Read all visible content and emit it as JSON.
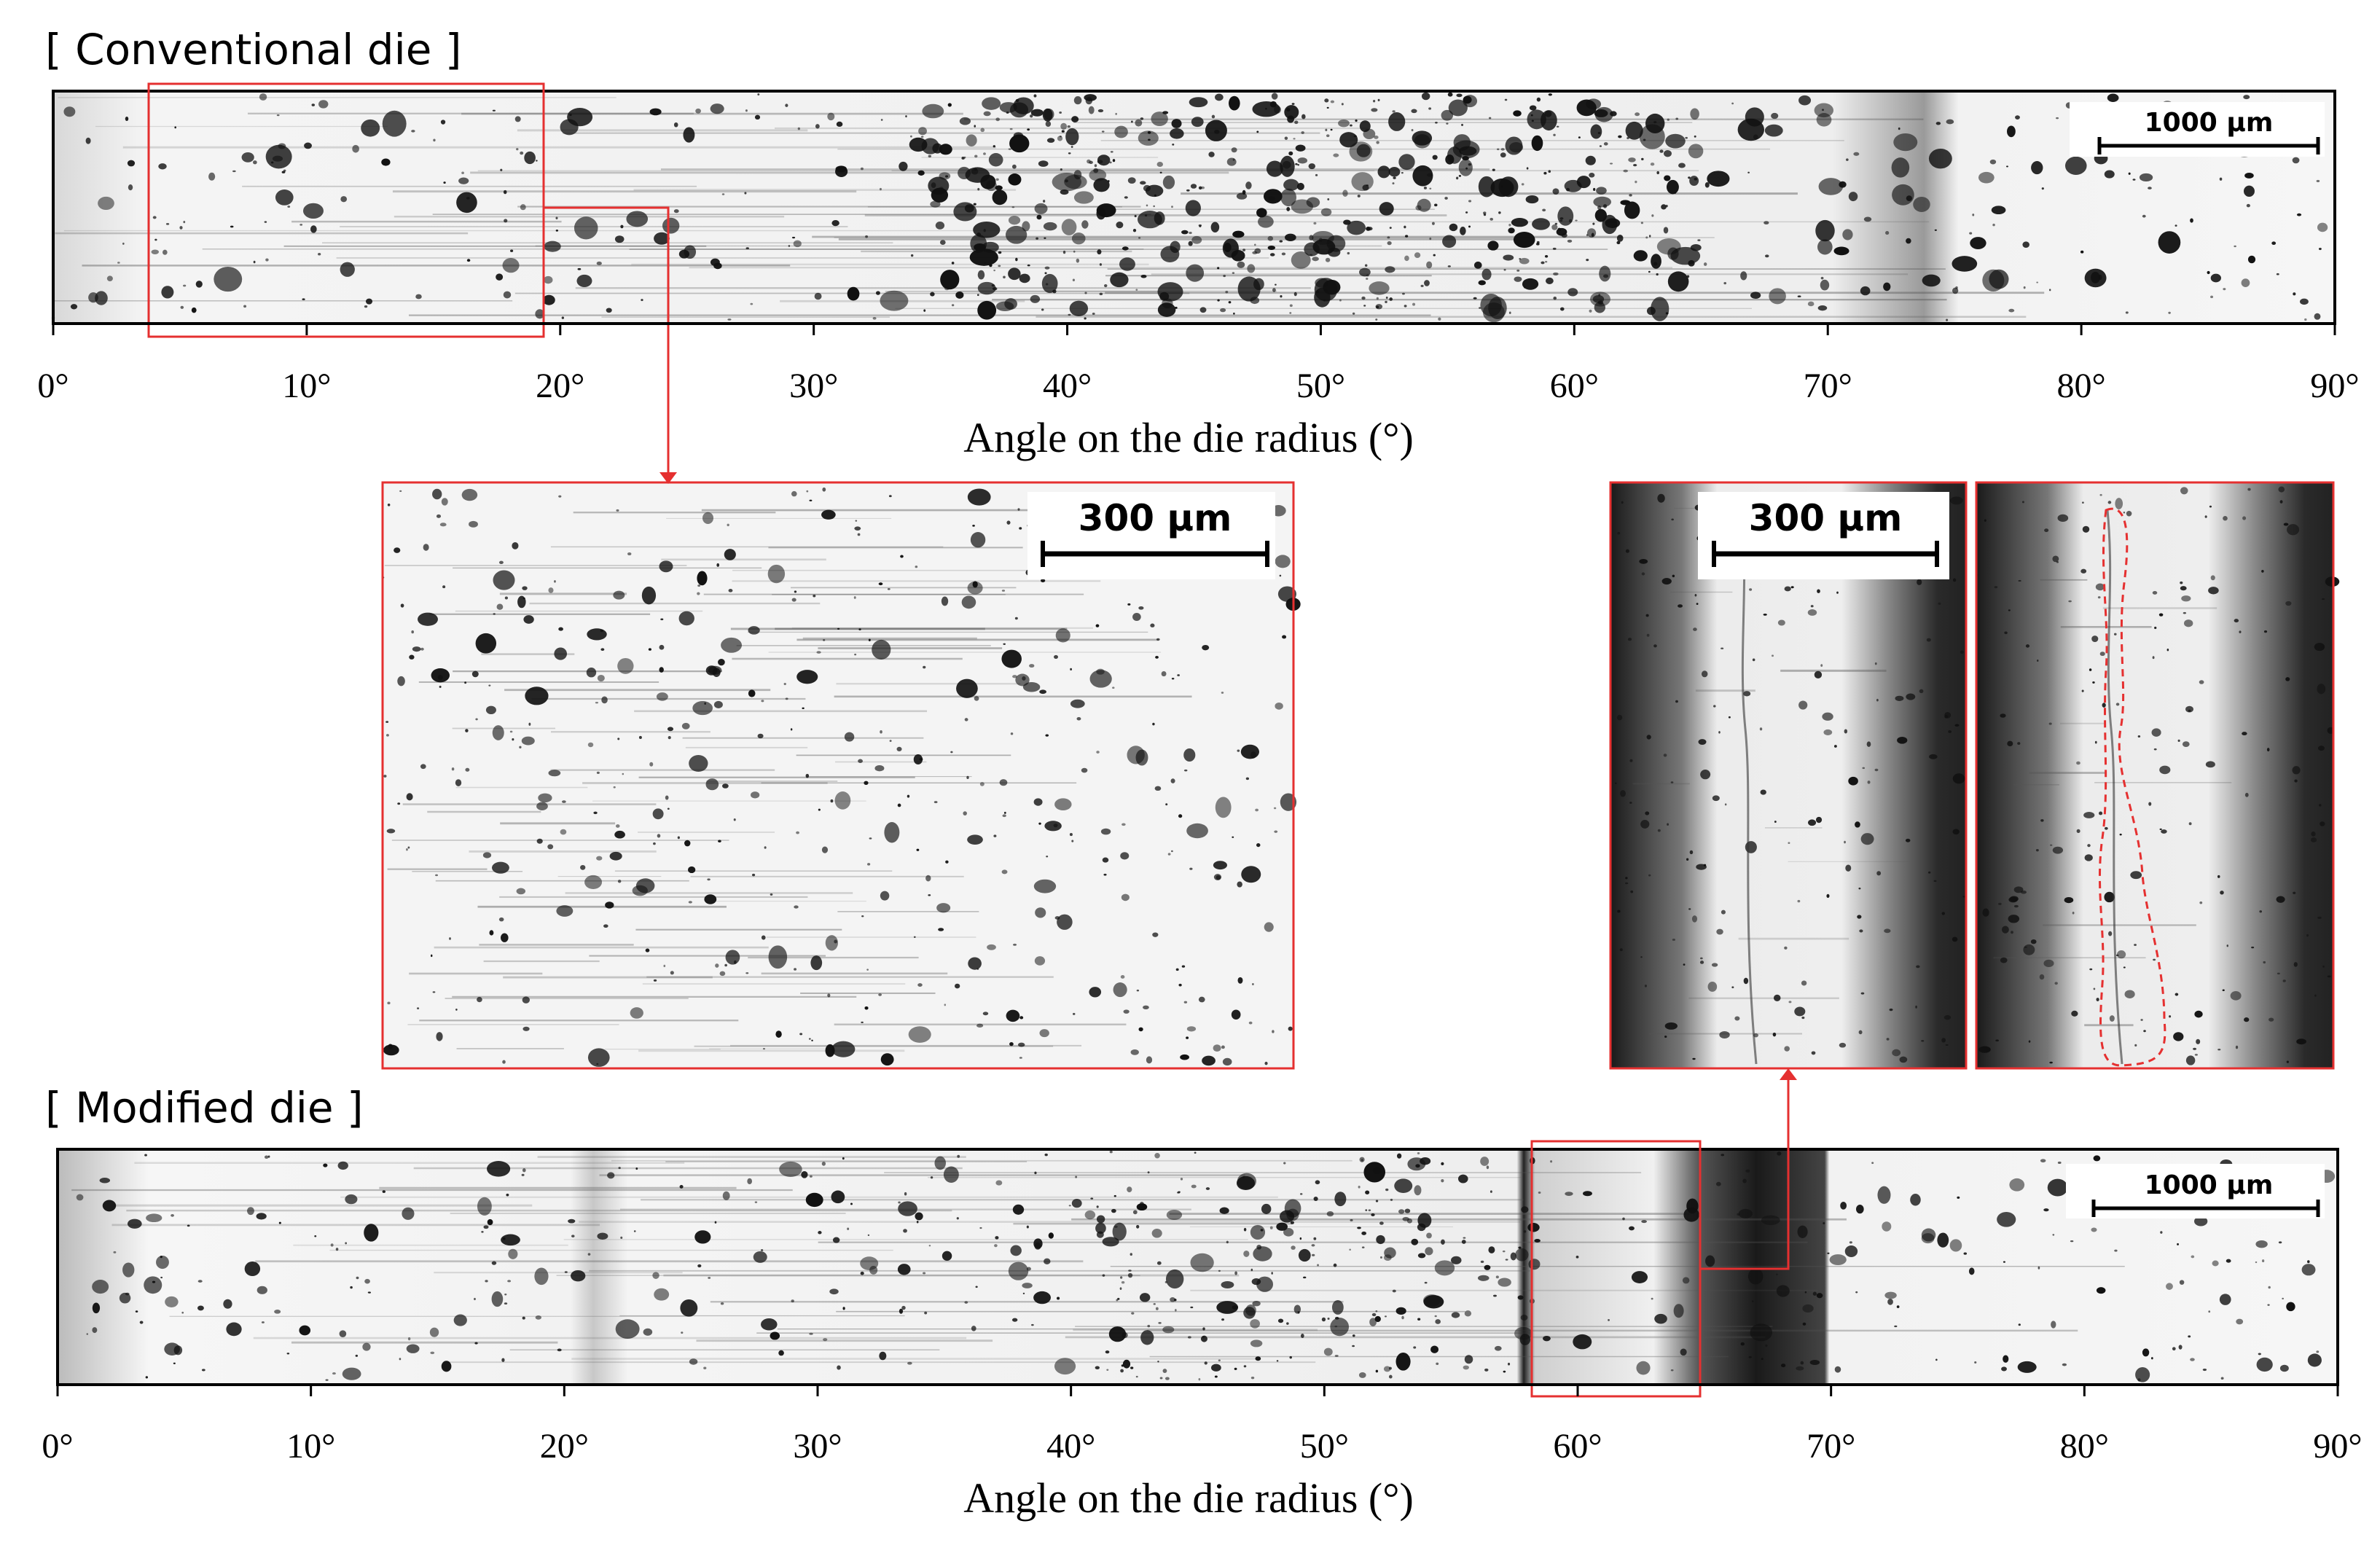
{
  "panels": [
    {
      "title": "[ Conventional die ]",
      "ticks": [
        "0°",
        "10°",
        "20°",
        "30°",
        "40°",
        "50°",
        "60°",
        "70°",
        "80°",
        "90°"
      ],
      "axis_label": "Angle on the die radius (°)",
      "scale_bar": "1000 µm"
    },
    {
      "title": "[ Modified die ]",
      "ticks": [
        "0°",
        "10°",
        "20°",
        "30°",
        "40°",
        "50°",
        "60°",
        "70°",
        "80°",
        "90°"
      ],
      "axis_label": "Angle on the die radius (°)",
      "scale_bar": "1000 µm"
    }
  ],
  "insets": [
    {
      "scale_bar": "300 µm"
    },
    {
      "scale_bar": "300 µm"
    }
  ]
}
